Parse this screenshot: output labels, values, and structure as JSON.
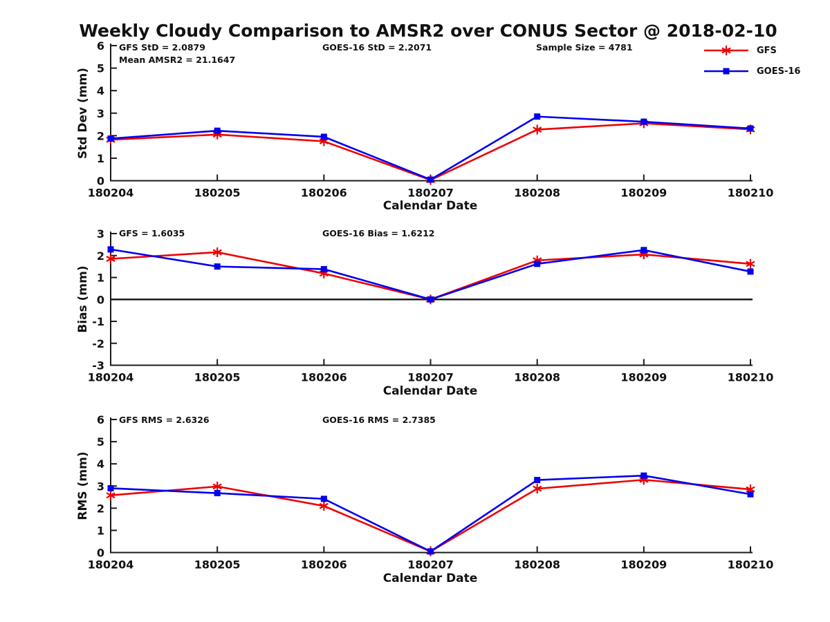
{
  "title": "Weekly Cloudy Comparison to AMSR2 over CONUS Sector @ 2018-02-10",
  "colors": {
    "gfs": "#ee0000",
    "goes16": "#0000ee",
    "axis": "#1a1a1a"
  },
  "chart_data": [
    {
      "type": "line",
      "name": "stddev",
      "ylabel": "Std Dev (mm)",
      "xlabel": "Calendar Date",
      "ylim": [
        0,
        6
      ],
      "yticks": [
        0,
        1,
        2,
        3,
        4,
        5,
        6
      ],
      "zero_line": false,
      "categories": [
        "180204",
        "180205",
        "180206",
        "180207",
        "180208",
        "180209",
        "180210"
      ],
      "annotations": [
        "GFS StD = 2.0879",
        "Mean AMSR2 = 21.1647",
        "GOES-16 StD = 2.2071",
        "Sample Size = 4781"
      ],
      "series": [
        {
          "name": "GFS",
          "color_key": "gfs",
          "marker": "asterisk",
          "values": [
            1.82,
            2.05,
            1.75,
            0.03,
            2.27,
            2.55,
            2.28
          ]
        },
        {
          "name": "GOES-16",
          "color_key": "goes16",
          "marker": "square",
          "values": [
            1.87,
            2.22,
            1.95,
            0.05,
            2.85,
            2.62,
            2.32
          ]
        }
      ]
    },
    {
      "type": "line",
      "name": "bias",
      "ylabel": "Bias (mm)",
      "xlabel": "Calendar Date",
      "ylim": [
        -3,
        3
      ],
      "yticks": [
        -3,
        -2,
        -1,
        0,
        1,
        2,
        3
      ],
      "zero_line": true,
      "categories": [
        "180204",
        "180205",
        "180206",
        "180207",
        "180208",
        "180209",
        "180210"
      ],
      "annotations": [
        "GFS = 1.6035",
        "GOES-16 Bias = 1.6212"
      ],
      "series": [
        {
          "name": "GFS",
          "color_key": "gfs",
          "marker": "asterisk",
          "values": [
            1.85,
            2.15,
            1.18,
            0.0,
            1.78,
            2.05,
            1.62
          ]
        },
        {
          "name": "GOES-16",
          "color_key": "goes16",
          "marker": "square",
          "values": [
            2.28,
            1.5,
            1.38,
            0.0,
            1.62,
            2.25,
            1.27
          ]
        }
      ]
    },
    {
      "type": "line",
      "name": "rms",
      "ylabel": "RMS (mm)",
      "xlabel": "Calendar Date",
      "ylim": [
        0,
        6
      ],
      "yticks": [
        0,
        1,
        2,
        3,
        4,
        5,
        6
      ],
      "zero_line": false,
      "categories": [
        "180204",
        "180205",
        "180206",
        "180207",
        "180208",
        "180209",
        "180210"
      ],
      "annotations": [
        "GFS RMS = 2.6326",
        "GOES-16 RMS = 2.7385"
      ],
      "series": [
        {
          "name": "GFS",
          "color_key": "gfs",
          "marker": "asterisk",
          "values": [
            2.58,
            2.98,
            2.1,
            0.05,
            2.88,
            3.28,
            2.85
          ]
        },
        {
          "name": "GOES-16",
          "color_key": "goes16",
          "marker": "square",
          "values": [
            2.9,
            2.68,
            2.42,
            0.05,
            3.27,
            3.47,
            2.63
          ]
        }
      ]
    }
  ]
}
